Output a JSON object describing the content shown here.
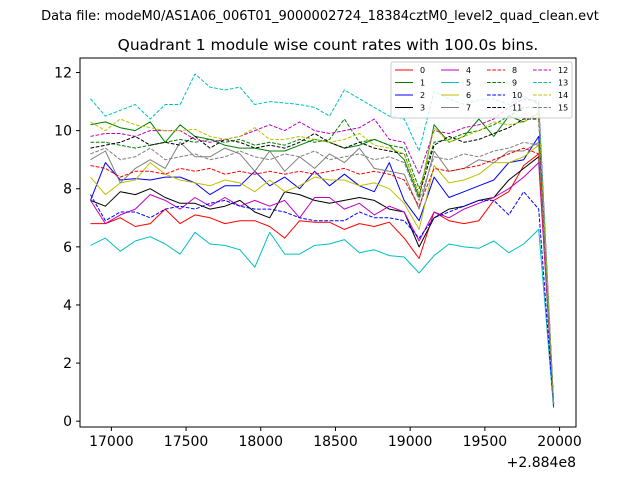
{
  "chart_data": {
    "type": "line",
    "suptitle": "Data file: modeM0/AS1A06_006T01_9000002724_18384cztM0_level2_quad_clean.evt",
    "title": "Quadrant 1 module wise count rates with 100.0s bins.",
    "xlabel": "",
    "ylabel": "",
    "x_offset_label": "+2.884e8",
    "xlim": [
      16790,
      20110
    ],
    "ylim": [
      -0.2,
      12.5
    ],
    "xticks": [
      17000,
      17500,
      18000,
      18500,
      19000,
      19500,
      20000
    ],
    "xtick_labels": [
      "17000",
      "17500",
      "18000",
      "18500",
      "19000",
      "19500",
      "20000"
    ],
    "yticks": [
      0,
      2,
      4,
      6,
      8,
      10,
      12
    ],
    "ytick_labels": [
      "0",
      "2",
      "4",
      "6",
      "8",
      "10",
      "12"
    ],
    "legend_position": "top-right",
    "x": [
      16860,
      16960,
      17060,
      17160,
      17260,
      17360,
      17460,
      17560,
      17660,
      17760,
      17860,
      17960,
      18060,
      18160,
      18260,
      18360,
      18460,
      18560,
      18660,
      18760,
      18860,
      18960,
      19060,
      19160,
      19260,
      19360,
      19460,
      19560,
      19660,
      19760,
      19860,
      19960
    ],
    "series": [
      {
        "name": "0",
        "color": "#ff0000",
        "dash": "solid",
        "values": [
          6.8,
          6.8,
          7.0,
          6.7,
          6.8,
          7.3,
          6.8,
          7.1,
          7.0,
          6.8,
          6.9,
          6.9,
          6.7,
          6.3,
          6.9,
          6.85,
          6.85,
          6.6,
          6.8,
          6.7,
          6.85,
          6.3,
          5.6,
          7.2,
          6.9,
          6.8,
          6.9,
          7.6,
          7.9,
          8.8,
          9.2,
          0.6
        ]
      },
      {
        "name": "1",
        "color": "#008000",
        "dash": "solid",
        "values": [
          10.2,
          10.3,
          10.1,
          10.0,
          10.3,
          9.6,
          10.2,
          9.8,
          9.7,
          9.5,
          9.4,
          9.4,
          9.3,
          9.3,
          9.5,
          9.7,
          9.6,
          9.4,
          9.5,
          9.7,
          9.5,
          9.0,
          7.7,
          10.2,
          9.6,
          9.8,
          10.4,
          9.8,
          10.5,
          10.3,
          10.6,
          0.5
        ]
      },
      {
        "name": "2",
        "color": "#0000ff",
        "dash": "solid",
        "values": [
          7.6,
          8.9,
          8.3,
          8.35,
          8.3,
          8.4,
          8.4,
          8.2,
          7.8,
          8.1,
          8.1,
          8.6,
          8.1,
          8.4,
          8.0,
          8.6,
          8.1,
          8.5,
          8.1,
          7.9,
          8.9,
          7.6,
          6.9,
          8.4,
          7.7,
          7.9,
          8.1,
          8.3,
          8.9,
          9.0,
          9.8,
          0.6
        ]
      },
      {
        "name": "3",
        "color": "#000000",
        "dash": "solid",
        "values": [
          7.6,
          7.4,
          7.9,
          7.8,
          8.0,
          7.7,
          7.5,
          7.5,
          7.3,
          7.4,
          7.6,
          7.2,
          7.0,
          7.9,
          7.8,
          7.6,
          7.5,
          7.6,
          7.7,
          7.6,
          7.3,
          7.2,
          6.0,
          7.0,
          7.3,
          7.4,
          7.6,
          7.7,
          8.3,
          8.7,
          9.1,
          0.6
        ]
      },
      {
        "name": "4",
        "color": "#c000c0",
        "dash": "solid",
        "values": [
          7.6,
          6.8,
          7.1,
          7.3,
          7.8,
          7.6,
          7.3,
          7.7,
          7.4,
          7.7,
          7.4,
          7.6,
          7.4,
          7.6,
          7.0,
          7.7,
          7.7,
          7.3,
          7.5,
          7.1,
          7.4,
          7.2,
          6.2,
          7.2,
          7.0,
          7.3,
          7.5,
          7.7,
          8.0,
          8.4,
          8.9,
          0.6
        ]
      },
      {
        "name": "5",
        "color": "#00c0c0",
        "dash": "solid",
        "values": [
          6.05,
          6.3,
          5.85,
          6.2,
          6.35,
          6.1,
          5.75,
          6.5,
          6.1,
          6.05,
          5.9,
          5.3,
          6.5,
          5.75,
          5.75,
          6.05,
          6.1,
          6.25,
          5.8,
          5.9,
          5.7,
          5.65,
          5.1,
          5.7,
          6.1,
          6.0,
          5.95,
          6.2,
          5.8,
          6.1,
          6.6,
          0.45
        ]
      },
      {
        "name": "6",
        "color": "#c0c000",
        "dash": "solid",
        "values": [
          8.4,
          7.8,
          8.2,
          8.3,
          8.9,
          8.5,
          8.3,
          8.2,
          8.1,
          8.3,
          8.2,
          7.9,
          8.3,
          7.9,
          8.1,
          8.4,
          8.3,
          8.3,
          8.1,
          8.2,
          8.0,
          7.5,
          6.6,
          8.8,
          8.2,
          8.3,
          8.5,
          8.9,
          8.9,
          9.1,
          9.5,
          0.6
        ]
      },
      {
        "name": "7",
        "color": "#808080",
        "dash": "solid",
        "values": [
          9.0,
          9.3,
          8.2,
          8.7,
          9.0,
          8.7,
          9.6,
          9.1,
          9.1,
          9.4,
          9.2,
          8.6,
          9.3,
          8.6,
          9.1,
          8.7,
          9.2,
          8.9,
          9.4,
          8.7,
          8.6,
          8.5,
          7.3,
          9.3,
          8.6,
          8.7,
          9.0,
          8.9,
          9.3,
          9.3,
          9.6,
          0.6
        ]
      },
      {
        "name": "8",
        "color": "#ff0000",
        "dash": "dashed",
        "values": [
          8.8,
          8.7,
          8.4,
          8.6,
          8.6,
          8.5,
          8.7,
          8.6,
          8.7,
          8.5,
          8.6,
          8.5,
          8.6,
          8.5,
          8.6,
          8.5,
          8.6,
          8.7,
          8.5,
          8.6,
          8.5,
          8.3,
          7.4,
          8.7,
          8.6,
          8.7,
          8.8,
          9.0,
          9.2,
          9.4,
          9.2,
          0.6
        ]
      },
      {
        "name": "9",
        "color": "#008000",
        "dash": "dashed",
        "values": [
          9.6,
          9.6,
          9.5,
          9.4,
          9.5,
          9.6,
          9.7,
          9.6,
          9.7,
          9.6,
          9.7,
          9.5,
          9.6,
          9.5,
          9.7,
          9.6,
          9.7,
          10.4,
          9.6,
          9.7,
          9.5,
          9.4,
          8.0,
          9.6,
          9.7,
          9.9,
          10.0,
          10.2,
          10.5,
          10.8,
          10.8,
          0.6
        ]
      },
      {
        "name": "10",
        "color": "#0000ff",
        "dash": "dashed",
        "values": [
          7.8,
          6.9,
          7.2,
          7.2,
          7.0,
          7.3,
          7.4,
          7.3,
          7.5,
          7.6,
          7.4,
          7.3,
          7.3,
          7.2,
          7.0,
          6.9,
          6.9,
          6.9,
          7.2,
          7.0,
          7.0,
          6.9,
          6.3,
          7.0,
          7.2,
          7.4,
          7.6,
          7.6,
          7.1,
          7.9,
          7.3,
          0.5
        ]
      },
      {
        "name": "11",
        "color": "#000000",
        "dash": "dashed",
        "values": [
          9.4,
          9.5,
          9.6,
          9.8,
          9.5,
          9.6,
          9.5,
          9.8,
          9.4,
          9.7,
          9.6,
          9.4,
          9.5,
          9.4,
          9.6,
          9.9,
          9.6,
          9.4,
          9.6,
          9.4,
          9.3,
          9.2,
          7.8,
          9.5,
          9.8,
          9.6,
          9.7,
          9.9,
          10.1,
          10.4,
          10.4,
          0.6
        ]
      },
      {
        "name": "12",
        "color": "#c000c0",
        "dash": "dashed",
        "values": [
          9.8,
          9.9,
          9.9,
          9.8,
          10.0,
          10.0,
          10.0,
          9.7,
          9.6,
          9.7,
          9.8,
          10.0,
          10.2,
          10.0,
          10.3,
          10.0,
          9.9,
          10.0,
          10.1,
          10.4,
          9.7,
          9.6,
          8.5,
          10.0,
          9.9,
          10.1,
          10.2,
          10.4,
          10.8,
          11.1,
          11.0,
          0.6
        ]
      },
      {
        "name": "13",
        "color": "#00c0c0",
        "dash": "dashed",
        "values": [
          11.1,
          10.5,
          10.7,
          10.9,
          10.4,
          10.9,
          10.9,
          11.95,
          11.5,
          11.4,
          11.5,
          10.9,
          11.0,
          10.95,
          10.9,
          10.8,
          10.5,
          11.4,
          11.1,
          10.8,
          10.5,
          10.4,
          9.3,
          11.35,
          11.1,
          10.9,
          11.05,
          11.1,
          10.9,
          11.2,
          10.9,
          0.5
        ]
      },
      {
        "name": "14",
        "color": "#c0c000",
        "dash": "dashed",
        "values": [
          10.3,
          10.0,
          10.4,
          10.2,
          10.1,
          10.0,
          10.0,
          10.05,
          9.8,
          9.7,
          9.8,
          10.1,
          9.7,
          9.7,
          9.8,
          9.7,
          9.6,
          9.7,
          9.9,
          9.5,
          9.4,
          9.2,
          7.8,
          10.1,
          9.6,
          9.8,
          10.0,
          10.3,
          10.2,
          10.3,
          10.6,
          0.6
        ]
      },
      {
        "name": "15",
        "color": "#808080",
        "dash": "dashed",
        "values": [
          9.2,
          9.4,
          9.0,
          9.1,
          9.4,
          9.0,
          9.1,
          9.2,
          9.0,
          9.1,
          9.3,
          9.1,
          9.0,
          9.2,
          9.1,
          9.3,
          9.0,
          9.1,
          9.2,
          9.0,
          9.1,
          8.9,
          7.6,
          9.1,
          9.0,
          9.2,
          9.1,
          9.3,
          9.4,
          9.6,
          9.5,
          0.6
        ]
      }
    ]
  }
}
